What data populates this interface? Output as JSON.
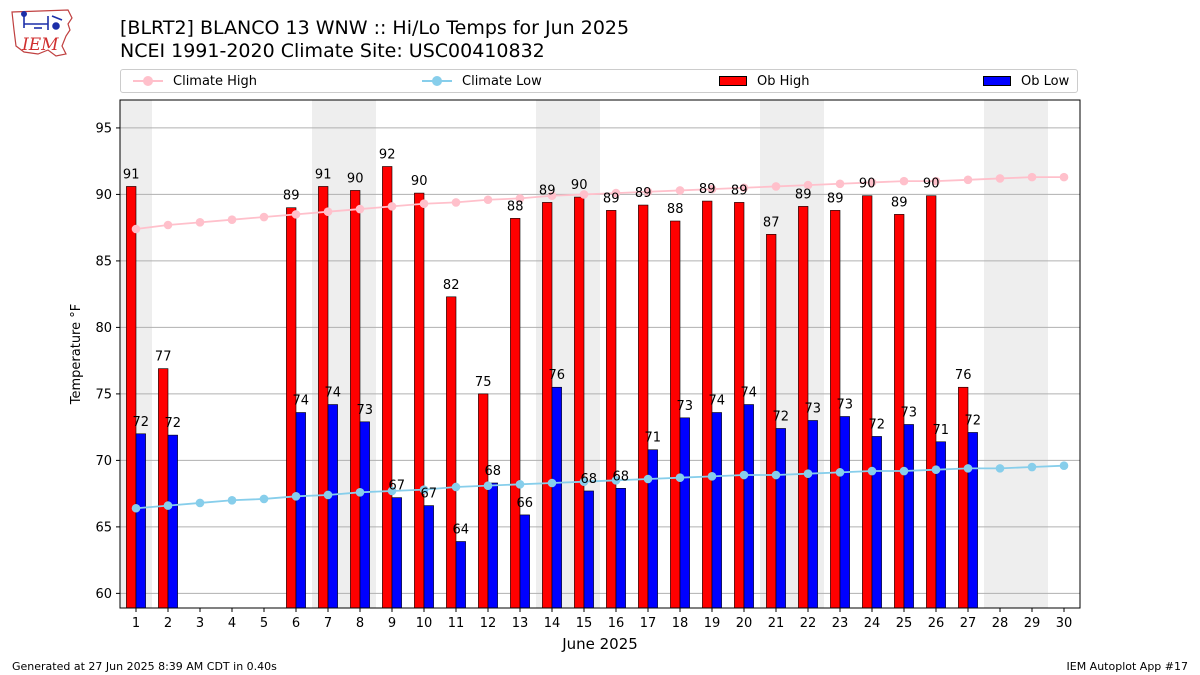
{
  "header": {
    "title_line1": "[BLRT2] BLANCO 13 WNW :: Hi/Lo Temps for Jun 2025",
    "title_line2": "NCEI 1991-2020 Climate Site: USC00410832",
    "logo_text": "IEM"
  },
  "legend": {
    "climate_high": "Climate High",
    "climate_low": "Climate Low",
    "ob_high": "Ob High",
    "ob_low": "Ob Low"
  },
  "colors": {
    "ob_high": "#ff0000",
    "ob_low": "#0000ff",
    "climate_high": "#ffc0cb",
    "climate_low": "#87ceeb",
    "weekend_shade": "#eeeeee",
    "grid": "#b0b0b0"
  },
  "footer": {
    "left": "Generated at 27 Jun 2025 8:39 AM CDT in 0.40s",
    "right": "IEM Autoplot App #17"
  },
  "chart_data": {
    "type": "bar",
    "xlabel": "June 2025",
    "ylabel": "Temperature °F",
    "ylim": [
      58.9,
      97.1
    ],
    "yticks": [
      60,
      65,
      70,
      75,
      80,
      85,
      90,
      95
    ],
    "grid": true,
    "legend_position": "top",
    "categories": [
      "1",
      "2",
      "3",
      "4",
      "5",
      "6",
      "7",
      "8",
      "9",
      "10",
      "11",
      "12",
      "13",
      "14",
      "15",
      "16",
      "17",
      "18",
      "19",
      "20",
      "21",
      "22",
      "23",
      "24",
      "25",
      "26",
      "27",
      "28",
      "29",
      "30"
    ],
    "weekend_days": [
      1,
      7,
      8,
      14,
      15,
      21,
      22,
      28,
      29
    ],
    "series": [
      {
        "name": "Ob High",
        "kind": "bar",
        "values": [
          91,
          77,
          null,
          null,
          null,
          89,
          91,
          90,
          92,
          90,
          82,
          75,
          88,
          89,
          90,
          89,
          89,
          88,
          89,
          89,
          87,
          89,
          89,
          90,
          89,
          90,
          76,
          null,
          null,
          null
        ],
        "bar_values": [
          90.6,
          76.9,
          null,
          null,
          null,
          89.0,
          90.6,
          90.3,
          92.1,
          90.1,
          82.3,
          75.0,
          88.2,
          89.4,
          89.8,
          88.8,
          89.2,
          88.0,
          89.5,
          89.4,
          87.0,
          89.1,
          88.8,
          89.9,
          88.5,
          89.9,
          75.5,
          null,
          null,
          null
        ]
      },
      {
        "name": "Ob Low",
        "kind": "bar",
        "values": [
          72,
          72,
          null,
          null,
          null,
          74,
          74,
          73,
          67,
          67,
          64,
          68,
          66,
          76,
          68,
          68,
          71,
          73,
          74,
          74,
          72,
          73,
          73,
          72,
          73,
          71,
          72,
          null,
          null,
          null
        ],
        "bar_values": [
          72.0,
          71.9,
          null,
          null,
          null,
          73.6,
          74.2,
          72.9,
          67.2,
          66.6,
          63.9,
          68.3,
          65.9,
          75.5,
          67.7,
          67.9,
          70.8,
          73.2,
          73.6,
          74.2,
          72.4,
          73.0,
          73.3,
          71.8,
          72.7,
          71.4,
          72.1,
          null,
          null,
          null
        ]
      },
      {
        "name": "Climate High",
        "kind": "line",
        "values": [
          87.4,
          87.7,
          87.9,
          88.1,
          88.3,
          88.5,
          88.7,
          88.9,
          89.1,
          89.3,
          89.4,
          89.6,
          89.7,
          89.9,
          90.0,
          90.1,
          90.2,
          90.3,
          90.4,
          90.5,
          90.6,
          90.7,
          90.8,
          90.9,
          91.0,
          91.0,
          91.1,
          91.2,
          91.3,
          91.3
        ]
      },
      {
        "name": "Climate Low",
        "kind": "line",
        "values": [
          66.4,
          66.6,
          66.8,
          67.0,
          67.1,
          67.3,
          67.4,
          67.6,
          67.7,
          67.8,
          68.0,
          68.1,
          68.2,
          68.3,
          68.4,
          68.5,
          68.6,
          68.7,
          68.8,
          68.9,
          68.9,
          69.0,
          69.1,
          69.2,
          69.2,
          69.3,
          69.4,
          69.4,
          69.5,
          69.6
        ]
      }
    ]
  }
}
